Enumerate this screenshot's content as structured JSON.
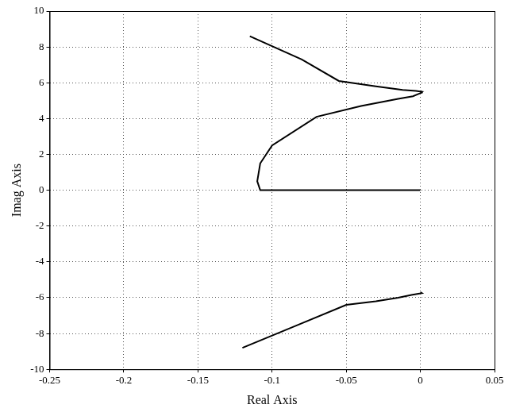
{
  "chart_data": {
    "type": "line",
    "x_label": "Real Axis",
    "y_label": "Imag Axis",
    "xlim": [
      -0.25,
      0.05
    ],
    "xticks": [
      -0.25,
      -0.2,
      -0.15,
      -0.1,
      -0.05,
      0,
      0.05
    ],
    "ylim": [
      -10,
      10
    ],
    "yticks": [
      -10,
      -8,
      -6,
      -4,
      -2,
      0,
      2,
      4,
      6,
      8,
      10
    ],
    "grid": true,
    "series": [
      {
        "color": "#000000",
        "x": [
          0,
          -0.05,
          -0.108,
          -0.11,
          -0.108,
          -0.1,
          -0.07,
          -0.04,
          -0.015,
          -0.005,
          -0.002,
          0.001,
          0
        ],
        "values": [
          0,
          0,
          0,
          0.5,
          1.5,
          2.5,
          4.1,
          4.7,
          5.1,
          5.25,
          5.35,
          5.45,
          5.55
        ]
      },
      {
        "color": "#000000",
        "x": [
          -0.115,
          -0.08,
          -0.055,
          -0.03,
          -0.012,
          -0.003,
          0.001,
          0
        ],
        "values": [
          8.6,
          7.3,
          6.1,
          5.8,
          5.6,
          5.55,
          5.5,
          5.45
        ]
      },
      {
        "color": "#000000",
        "x": [
          -0.12,
          -0.085,
          -0.05,
          -0.03,
          -0.015,
          -0.006,
          0.001,
          0
        ],
        "values": [
          -8.8,
          -7.6,
          -6.4,
          -6.2,
          -6.0,
          -5.85,
          -5.75,
          -5.7
        ]
      }
    ]
  }
}
